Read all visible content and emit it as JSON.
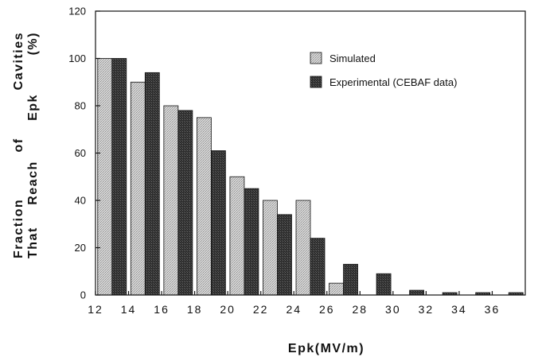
{
  "chart_data": {
    "type": "bar",
    "title": "",
    "xlabel": "Epk(MV/m)",
    "ylabel_lines": [
      [
        "Fraction",
        "of",
        "Cavities"
      ],
      [
        "That",
        "Reach",
        "Epk",
        "(%)"
      ]
    ],
    "ylim": [
      0,
      120
    ],
    "y_ticks": [
      0,
      20,
      40,
      60,
      80,
      100,
      120
    ],
    "x_ticks": [
      "12",
      "14",
      "16",
      "18",
      "20",
      "22",
      "24",
      "26",
      "28",
      "30",
      "32",
      "34",
      "36"
    ],
    "categories": [
      "12",
      "14",
      "16",
      "18",
      "20",
      "22",
      "24",
      "26",
      "28",
      "30",
      "32",
      "34",
      "36"
    ],
    "legend_position": "top-right",
    "grid": false,
    "series": [
      {
        "name": "Simulated",
        "color": "#bdbdbd",
        "values": [
          100,
          90,
          80,
          75,
          50,
          40,
          40,
          5,
          0,
          0,
          0,
          0,
          0
        ]
      },
      {
        "name": "Experimental (CEBAF data)",
        "color": "#3a3a3a",
        "values": [
          100,
          94,
          78,
          61,
          45,
          34,
          24,
          13,
          9,
          2,
          1,
          1,
          1
        ]
      }
    ]
  }
}
